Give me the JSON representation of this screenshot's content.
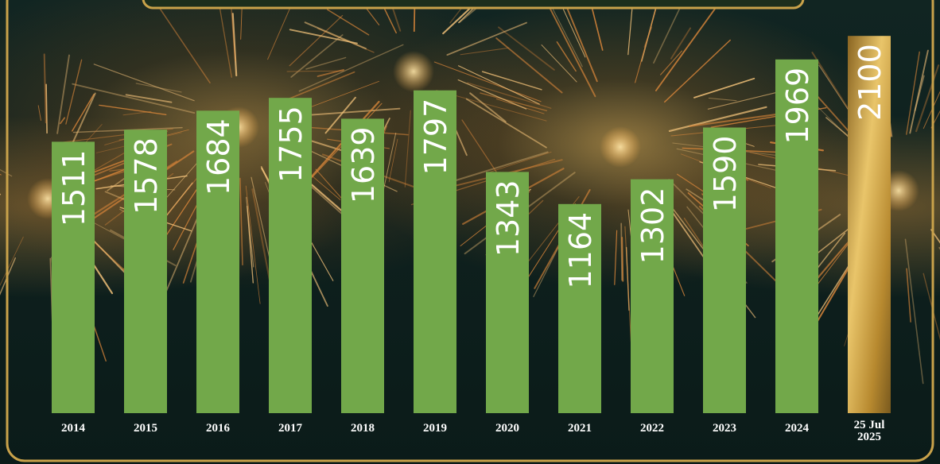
{
  "chart_data": {
    "type": "bar",
    "categories": [
      "2014",
      "2015",
      "2016",
      "2017",
      "2018",
      "2019",
      "2020",
      "2021",
      "2022",
      "2023",
      "2024",
      "25 Jul\n2025"
    ],
    "values": [
      1511,
      1578,
      1684,
      1755,
      1639,
      1797,
      1343,
      1164,
      1302,
      1590,
      1969,
      2100
    ],
    "title": "",
    "xlabel": "",
    "ylabel": "",
    "ylim": [
      0,
      2300
    ],
    "grid": false,
    "legend": "none",
    "colors": {
      "bar": "#72a84a",
      "highlight_bar_light": "#e9c56a",
      "highlight_bar_dark": "#8a6522",
      "frame": "#c9a24a",
      "value_label": "#ffffff",
      "tick_label": "#ffffff",
      "background": "#0d1e1c"
    },
    "highlight_index": 11
  }
}
